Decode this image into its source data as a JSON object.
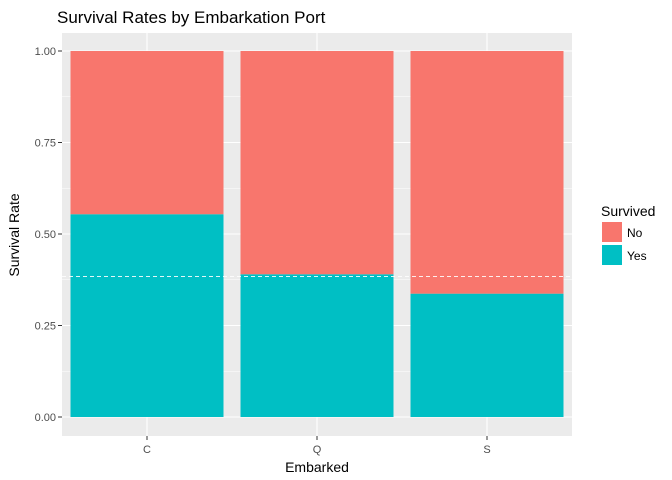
{
  "chart_data": {
    "type": "bar",
    "stacked": true,
    "title": "Survival Rates by Embarkation Port",
    "xlabel": "Embarked",
    "ylabel": "Survival Rate",
    "categories": [
      "C",
      "Q",
      "S"
    ],
    "series": [
      {
        "name": "Yes",
        "values": [
          0.554,
          0.39,
          0.337
        ],
        "color": "#00BFC4"
      },
      {
        "name": "No",
        "values": [
          0.446,
          0.61,
          0.663
        ],
        "color": "#F8766D"
      }
    ],
    "ylim": [
      0,
      1
    ],
    "yticks": [
      "0.00",
      "0.25",
      "0.50",
      "0.75",
      "1.00"
    ],
    "reference_line": {
      "y": 0.384,
      "style": "dashed",
      "color": "#ffffff"
    },
    "grid": true,
    "legend": {
      "title": "Survived",
      "position": "right",
      "entries": [
        {
          "label": "No",
          "color": "#F8766D"
        },
        {
          "label": "Yes",
          "color": "#00BFC4"
        }
      ]
    }
  }
}
